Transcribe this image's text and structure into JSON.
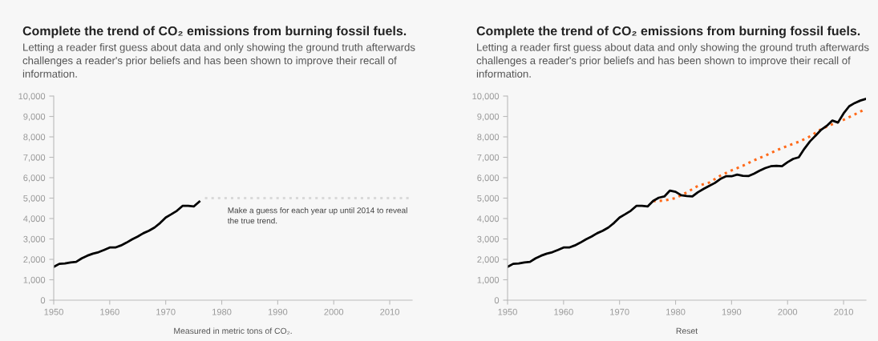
{
  "chart_data": [
    {
      "type": "line",
      "title": "Complete the trend of CO₂ emissions from burning fossil fuels.",
      "subtitle": "Letting a reader first guess about data and only showing the ground truth afterwards\nchallenges a reader's prior beliefs and has been shown to improve their recall of\ninformation.",
      "x": [
        1950,
        1951,
        1952,
        1953,
        1954,
        1955,
        1956,
        1957,
        1958,
        1959,
        1960,
        1961,
        1962,
        1963,
        1964,
        1965,
        1966,
        1967,
        1968,
        1969,
        1970,
        1971,
        1972,
        1973,
        1974,
        1975,
        1976
      ],
      "series": [
        {
          "color": "#000000",
          "line_style": "solid",
          "values": [
            1630,
            1780,
            1800,
            1850,
            1880,
            2050,
            2180,
            2280,
            2350,
            2460,
            2580,
            2580,
            2680,
            2820,
            2980,
            3120,
            3280,
            3400,
            3560,
            3780,
            4050,
            4210,
            4380,
            4620,
            4620,
            4590,
            4830
          ]
        },
        {
          "color": "#d9d9d9",
          "line_style": "dotted",
          "x": [
            1977,
            2014
          ],
          "values": [
            5000,
            5000
          ]
        }
      ],
      "xlim": [
        1950,
        2014
      ],
      "xticks": [
        1950,
        1960,
        1970,
        1980,
        1990,
        2000,
        2010
      ],
      "ylim": [
        0,
        10000
      ],
      "yticks": [
        0,
        {
          "value": 1000,
          "label": "1,000"
        },
        {
          "value": 2000,
          "label": "2,000"
        },
        {
          "value": 3000,
          "label": "3,000"
        },
        {
          "value": 4000,
          "label": "4,000"
        },
        {
          "value": 5000,
          "label": "5,000"
        },
        {
          "value": 6000,
          "label": "6,000"
        },
        {
          "value": 7000,
          "label": "7,000"
        },
        {
          "value": 8000,
          "label": "8,000"
        },
        {
          "value": 9000,
          "label": "9,000"
        },
        {
          "value": 10000,
          "label": "10,000"
        }
      ],
      "annotations": [
        "Make a guess for each year up until 2014 to reveal\nthe true trend.",
        "Measured in metric tons of CO₂."
      ]
    },
    {
      "type": "line",
      "title": "Complete the trend of CO₂ emissions from burning fossil fuels.",
      "subtitle": "Letting a reader first guess about data and only showing the ground truth afterwards\nchallenges a reader's prior beliefs and has been shown to improve their recall of\ninformation.",
      "x": [
        1950,
        1951,
        1952,
        1953,
        1954,
        1955,
        1956,
        1957,
        1958,
        1959,
        1960,
        1961,
        1962,
        1963,
        1964,
        1965,
        1966,
        1967,
        1968,
        1969,
        1970,
        1971,
        1972,
        1973,
        1974,
        1975,
        1976,
        1977,
        1978,
        1979,
        1980,
        1981,
        1982,
        1983,
        1984,
        1985,
        1986,
        1987,
        1988,
        1989,
        1990,
        1991,
        1992,
        1993,
        1994,
        1995,
        1996,
        1997,
        1998,
        1999,
        2000,
        2001,
        2002,
        2003,
        2004,
        2005,
        2006,
        2007,
        2008,
        2009,
        2010,
        2011,
        2012,
        2013,
        2014
      ],
      "series": [
        {
          "color": "#ff6a1a",
          "line_style": "dotted",
          "x": [
            1976,
            1978,
            1980,
            1982,
            1984,
            1986,
            1988,
            1990,
            1992,
            1994,
            1996,
            1998,
            2000,
            2002,
            2004,
            2006,
            2008,
            2010,
            2012,
            2014
          ],
          "values": [
            4850,
            4880,
            5000,
            5280,
            5600,
            5760,
            6100,
            6360,
            6580,
            6850,
            7080,
            7340,
            7560,
            7760,
            8020,
            8380,
            8620,
            8840,
            9100,
            9380
          ]
        },
        {
          "color": "#000000",
          "line_style": "solid",
          "values": [
            1630,
            1780,
            1800,
            1850,
            1880,
            2050,
            2180,
            2280,
            2350,
            2460,
            2580,
            2580,
            2680,
            2820,
            2980,
            3120,
            3280,
            3400,
            3560,
            3780,
            4050,
            4210,
            4380,
            4620,
            4620,
            4590,
            4860,
            5020,
            5080,
            5370,
            5310,
            5140,
            5100,
            5080,
            5290,
            5450,
            5600,
            5740,
            5940,
            6070,
            6070,
            6150,
            6090,
            6080,
            6200,
            6340,
            6470,
            6560,
            6580,
            6560,
            6760,
            6920,
            7000,
            7420,
            7780,
            8060,
            8350,
            8540,
            8800,
            8700,
            9150,
            9500,
            9660,
            9780,
            9860
          ]
        }
      ],
      "xlim": [
        1950,
        2014
      ],
      "xticks": [
        1950,
        1960,
        1970,
        1980,
        1990,
        2000,
        2010
      ],
      "ylim": [
        0,
        10000
      ],
      "yticks": [
        0,
        {
          "value": 1000,
          "label": "1,000"
        },
        {
          "value": 2000,
          "label": "2,000"
        },
        {
          "value": 3000,
          "label": "3,000"
        },
        {
          "value": 4000,
          "label": "4,000"
        },
        {
          "value": 5000,
          "label": "5,000"
        },
        {
          "value": 6000,
          "label": "6,000"
        },
        {
          "value": 7000,
          "label": "7,000"
        },
        {
          "value": 8000,
          "label": "8,000"
        },
        {
          "value": 9000,
          "label": "9,000"
        },
        {
          "value": 10000,
          "label": "10,000"
        }
      ],
      "annotations": [
        "Reset"
      ]
    }
  ]
}
